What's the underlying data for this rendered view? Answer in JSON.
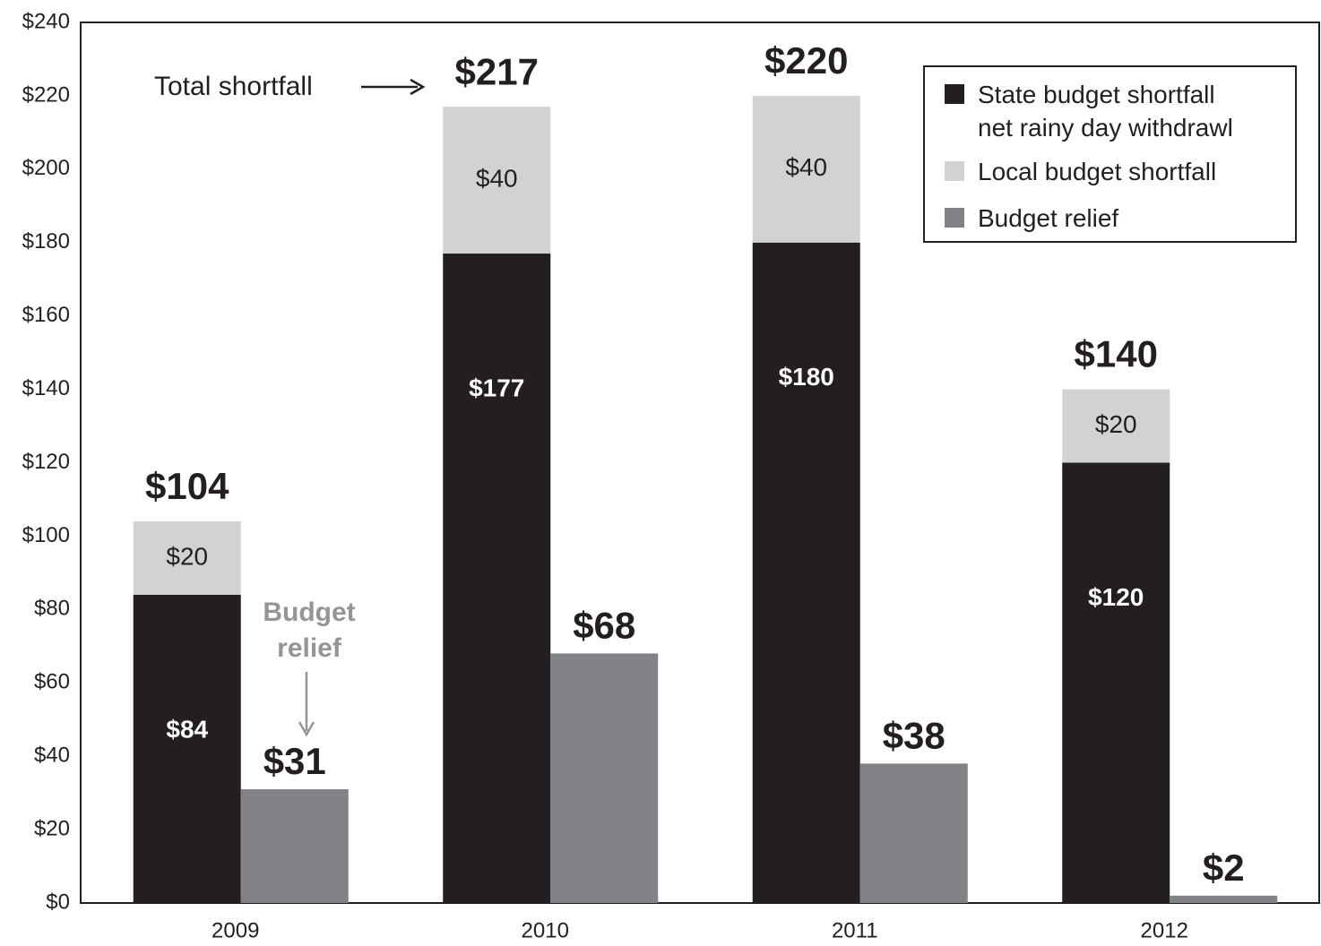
{
  "chart_data": {
    "type": "bar",
    "categories": [
      "2009",
      "2010",
      "2011",
      "2012"
    ],
    "series": [
      {
        "name": "State budget shortfall\nnet rainy day withdrawl",
        "color": "#231f20",
        "stacked": true,
        "values": [
          84,
          177,
          180,
          120
        ],
        "value_labels": [
          "$84",
          "$177",
          "$180",
          "$120"
        ]
      },
      {
        "name": "Local budget shortfall",
        "color": "#d1d2d4",
        "stacked": true,
        "values": [
          20,
          40,
          40,
          20
        ],
        "value_labels": [
          "$20",
          "$40",
          "$40",
          "$20"
        ]
      },
      {
        "name": "Budget relief",
        "color": "#808285",
        "stacked": false,
        "values": [
          31,
          68,
          38,
          2
        ],
        "value_labels": [
          "$31",
          "$68",
          "$38",
          "$2"
        ]
      }
    ],
    "totals": {
      "values": [
        104,
        217,
        220,
        140
      ],
      "value_labels": [
        "$104",
        "$217",
        "$220",
        "$140"
      ]
    },
    "annotations": [
      "Total shortfall",
      "Budget\nrelief"
    ],
    "ylim": [
      0,
      240
    ],
    "yticks": [
      {
        "value": 0,
        "label": "$0"
      },
      {
        "value": 20,
        "label": "$20"
      },
      {
        "value": 40,
        "label": "$40"
      },
      {
        "value": 60,
        "label": "$60"
      },
      {
        "value": 80,
        "label": "$80"
      },
      {
        "value": 100,
        "label": "$100"
      },
      {
        "value": 120,
        "label": "$120"
      },
      {
        "value": 140,
        "label": "$140"
      },
      {
        "value": 160,
        "label": "$160"
      },
      {
        "value": 180,
        "label": "$180"
      },
      {
        "value": 200,
        "label": "$200"
      },
      {
        "value": 220,
        "label": "$220"
      },
      {
        "value": 240,
        "label": "$240"
      }
    ],
    "grid": false,
    "legend": "upper right"
  }
}
